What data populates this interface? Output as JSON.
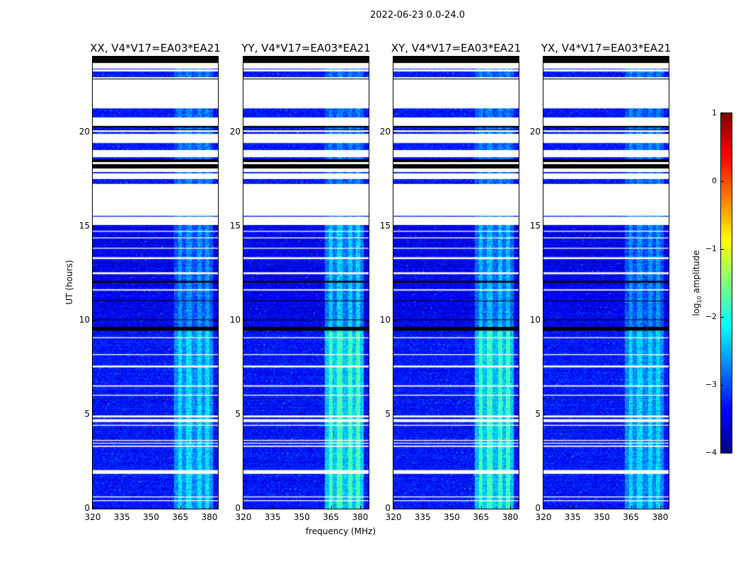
{
  "suptitle": "2022-06-23 0.0-24.0",
  "chart_data": {
    "type": "heatmap",
    "panels": [
      {
        "title": "XX, V4*V17=EA03*EA21",
        "band_gain_early": 1.0,
        "band_gain_late": 0.75
      },
      {
        "title": "YY, V4*V17=EA03*EA21",
        "band_gain_early": 1.45,
        "band_gain_late": 1.05
      },
      {
        "title": "XY, V4*V17=EA03*EA21",
        "band_gain_early": 1.4,
        "band_gain_late": 0.95
      },
      {
        "title": "YX, V4*V17=EA03*EA21",
        "band_gain_early": 0.95,
        "band_gain_late": 0.75
      }
    ],
    "xlabel": "frequency (MHz)",
    "ylabel": "UT (hours)",
    "xlim": [
      320,
      384.4
    ],
    "ylim": [
      0,
      24
    ],
    "xticks": [
      "320",
      "335",
      "350",
      "365",
      "380"
    ],
    "xtick_values": [
      320,
      335,
      350,
      365,
      380
    ],
    "yticks": [
      "0",
      "5",
      "10",
      "15",
      "20"
    ],
    "ytick_values": [
      0,
      5,
      10,
      15,
      20
    ],
    "rfi_band_mhz": [
      362,
      382
    ],
    "rfi_stripes_mhz": [
      [
        364,
        366
      ],
      [
        368,
        371
      ],
      [
        374,
        376
      ],
      [
        378,
        380
      ]
    ],
    "background_log_amplitude": -3.3,
    "time_segments_hours": [
      [
        24,
        23.66,
        "flag"
      ],
      [
        23.66,
        23.36,
        "gap"
      ],
      [
        23.32,
        23.21,
        "gap"
      ],
      [
        22.91,
        22.83,
        "gap"
      ],
      [
        22.83,
        22.79,
        "flag"
      ],
      [
        22.79,
        21.25,
        "gap"
      ],
      [
        20.77,
        20.32,
        "gap"
      ],
      [
        20.32,
        20.24,
        "flag"
      ],
      [
        20.13,
        20.09,
        "flag"
      ],
      [
        20.09,
        20.0,
        "gap"
      ],
      [
        19.9,
        19.41,
        "gap"
      ],
      [
        19.04,
        18.66,
        "gap"
      ],
      [
        18.55,
        18.4,
        "flag"
      ],
      [
        18.4,
        18.29,
        "gap"
      ],
      [
        18.29,
        18.06,
        "flag"
      ],
      [
        18.06,
        17.87,
        "gap"
      ],
      [
        17.8,
        17.5,
        "gap"
      ],
      [
        17.24,
        15.55,
        "gap"
      ],
      [
        15.5,
        15.06,
        "gap"
      ],
      [
        14.75,
        14.7,
        "gap"
      ],
      [
        14.4,
        14.35,
        "gap"
      ],
      [
        13.85,
        13.8,
        "gap"
      ],
      [
        13.35,
        13.25,
        "gap"
      ],
      [
        12.55,
        12.45,
        "gap"
      ],
      [
        12.1,
        12.0,
        "flag"
      ],
      [
        11.65,
        11.58,
        "gap"
      ],
      [
        11.05,
        11.02,
        "flag"
      ],
      [
        10.05,
        10.02,
        "flag"
      ],
      [
        9.65,
        9.45,
        "flag"
      ],
      [
        9.1,
        9.05,
        "gap"
      ],
      [
        8.2,
        8.15,
        "gap"
      ],
      [
        7.6,
        7.5,
        "gap"
      ],
      [
        6.55,
        6.48,
        "gap"
      ],
      [
        6.05,
        6.0,
        "gap"
      ],
      [
        4.95,
        4.85,
        "gap"
      ],
      [
        4.75,
        4.6,
        "gap"
      ],
      [
        4.45,
        4.4,
        "gap"
      ],
      [
        3.65,
        3.6,
        "gap"
      ],
      [
        3.5,
        3.45,
        "gap"
      ],
      [
        3.35,
        3.28,
        "gap"
      ],
      [
        2.05,
        1.85,
        "gap"
      ],
      [
        0.65,
        0.6,
        "gap"
      ],
      [
        0.45,
        0.4,
        "gap"
      ]
    ],
    "colorbar": {
      "label_main": "log",
      "label_sub": "10",
      "label_rest": " amplitude",
      "range": [
        -4,
        1
      ],
      "colormap": "jet",
      "ticks": [
        "−4",
        "−3",
        "−2",
        "−1",
        "0",
        "1"
      ],
      "tick_values": [
        -4,
        -3,
        -2,
        -1,
        0,
        1
      ]
    }
  }
}
